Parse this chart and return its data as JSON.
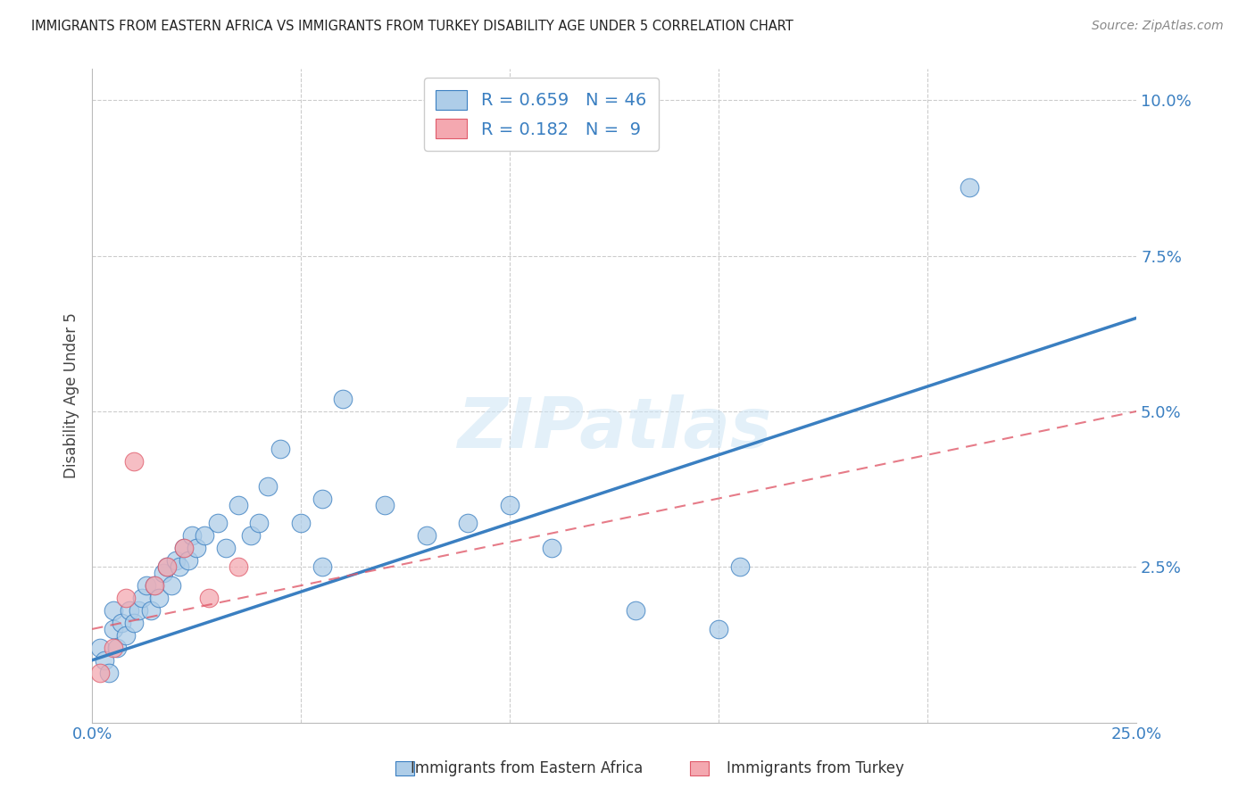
{
  "title": "IMMIGRANTS FROM EASTERN AFRICA VS IMMIGRANTS FROM TURKEY DISABILITY AGE UNDER 5 CORRELATION CHART",
  "source": "Source: ZipAtlas.com",
  "ylabel": "Disability Age Under 5",
  "legend_label1": "Immigrants from Eastern Africa",
  "legend_label2": "Immigrants from Turkey",
  "R1": 0.659,
  "N1": 46,
  "R2": 0.182,
  "N2": 9,
  "color1": "#aecde8",
  "color2": "#f4a8b0",
  "line_color1": "#3a7fc1",
  "line_color2": "#e05a6a",
  "tick_color": "#3a7fc1",
  "xlim": [
    0.0,
    0.25
  ],
  "ylim": [
    0.0,
    0.105
  ],
  "yticks": [
    0.025,
    0.05,
    0.075,
    0.1
  ],
  "ytick_labels": [
    "2.5%",
    "5.0%",
    "7.5%",
    "10.0%"
  ],
  "xticks": [
    0.0,
    0.05,
    0.1,
    0.15,
    0.2,
    0.25
  ],
  "xtick_labels": [
    "0.0%",
    "",
    "",
    "",
    "",
    "25.0%"
  ],
  "blue_x": [
    0.002,
    0.003,
    0.004,
    0.005,
    0.005,
    0.006,
    0.007,
    0.008,
    0.009,
    0.01,
    0.011,
    0.012,
    0.013,
    0.014,
    0.015,
    0.016,
    0.017,
    0.018,
    0.019,
    0.02,
    0.021,
    0.022,
    0.023,
    0.024,
    0.025,
    0.027,
    0.03,
    0.032,
    0.035,
    0.038,
    0.04,
    0.042,
    0.045,
    0.05,
    0.055,
    0.06,
    0.07,
    0.08,
    0.09,
    0.1,
    0.11,
    0.13,
    0.15,
    0.155,
    0.21,
    0.055
  ],
  "blue_y": [
    0.012,
    0.01,
    0.008,
    0.015,
    0.018,
    0.012,
    0.016,
    0.014,
    0.018,
    0.016,
    0.018,
    0.02,
    0.022,
    0.018,
    0.022,
    0.02,
    0.024,
    0.025,
    0.022,
    0.026,
    0.025,
    0.028,
    0.026,
    0.03,
    0.028,
    0.03,
    0.032,
    0.028,
    0.035,
    0.03,
    0.032,
    0.038,
    0.044,
    0.032,
    0.025,
    0.052,
    0.035,
    0.03,
    0.032,
    0.035,
    0.028,
    0.018,
    0.015,
    0.025,
    0.086,
    0.036
  ],
  "pink_x": [
    0.002,
    0.005,
    0.008,
    0.01,
    0.015,
    0.018,
    0.022,
    0.028,
    0.035
  ],
  "pink_y": [
    0.008,
    0.012,
    0.02,
    0.042,
    0.022,
    0.025,
    0.028,
    0.02,
    0.025
  ],
  "line1_x0": 0.0,
  "line1_y0": 0.01,
  "line1_x1": 0.25,
  "line1_y1": 0.065,
  "line2_x0": 0.0,
  "line2_y0": 0.015,
  "line2_x1": 0.25,
  "line2_y1": 0.05,
  "watermark": "ZIPatlas",
  "background_color": "#ffffff",
  "grid_color": "#cccccc"
}
